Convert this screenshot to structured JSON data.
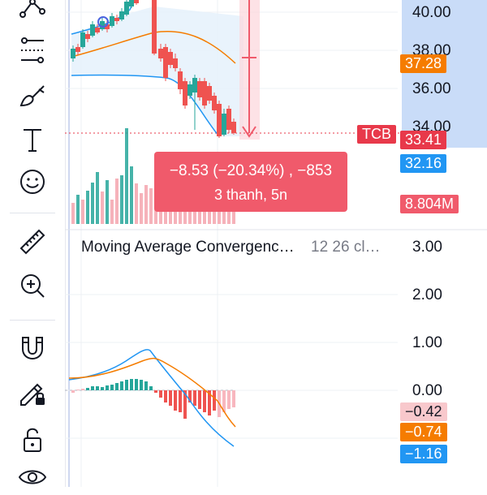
{
  "symbol_tag": "TCB",
  "price_axis": {
    "labels": [
      "40.00",
      "38.00",
      "36.00",
      "34.00"
    ],
    "tags": [
      {
        "name": "price-tag-37-28",
        "value": "37.28",
        "color": "#f57c00"
      },
      {
        "name": "price-tag-last",
        "value": "33.41",
        "color": "#e8394a"
      },
      {
        "name": "price-tag-32-16",
        "value": "32.16",
        "color": "#2196f3"
      }
    ],
    "volume_tag": {
      "value": "8.804M",
      "color": "#f05a6b"
    }
  },
  "tooltip": {
    "line1": "−8.53 (−20.34%) , −853",
    "line2": "3 thanh, 5n"
  },
  "macd": {
    "title": "Moving Average Convergenc…",
    "params": "12 26 cl…",
    "axis_labels": [
      "3.00",
      "2.00",
      "1.00",
      "0.00"
    ],
    "tags": [
      {
        "name": "macd-hist-tag",
        "value": "−0.42",
        "color": "#f8c8cc",
        "text_color": "#131722"
      },
      {
        "name": "macd-signal-tag",
        "value": "−0.74",
        "color": "#f57c00",
        "text_color": "#ffffff"
      },
      {
        "name": "macd-line-tag",
        "value": "−1.16",
        "color": "#2196f3",
        "text_color": "#ffffff"
      }
    ]
  },
  "toolbar": {
    "tools": [
      {
        "name": "trend-line-tool-icon"
      },
      {
        "name": "fib-retracement-tool-icon"
      },
      {
        "name": "brush-tool-icon"
      },
      {
        "name": "text-tool-icon"
      },
      {
        "name": "emoji-tool-icon"
      },
      {
        "name": "ruler-tool-icon"
      },
      {
        "name": "zoom-in-tool-icon"
      },
      {
        "name": "magnet-tool-icon"
      },
      {
        "name": "lock-drawing-tool-icon"
      },
      {
        "name": "unlock-tool-icon"
      },
      {
        "name": "eye-tool-icon"
      }
    ]
  },
  "colors": {
    "up": "#26a69a",
    "down": "#ef5350",
    "ma_blue": "#2196f3",
    "ma_orange": "#f57c00",
    "bb_fill": "#e3f0fb",
    "axis_highlight": "#c9dcf8"
  }
}
